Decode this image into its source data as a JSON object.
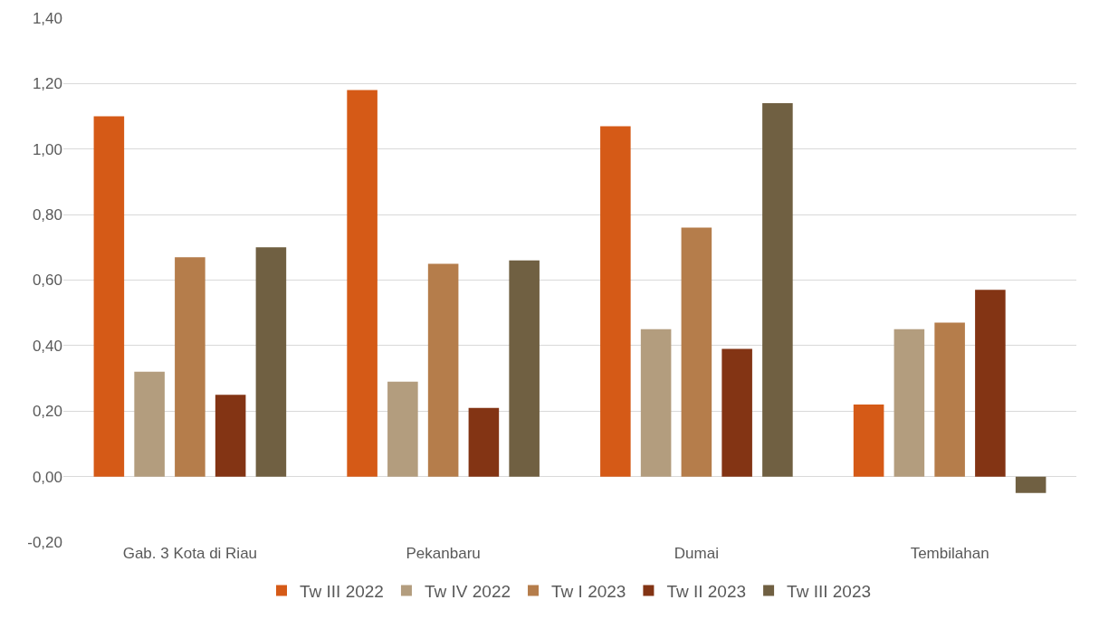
{
  "chart_data": {
    "type": "bar",
    "categories": [
      "Gab. 3 Kota di Riau",
      "Pekanbaru",
      "Dumai",
      "Tembilahan"
    ],
    "series": [
      {
        "name": "Tw III 2022",
        "color": "#d55a17",
        "values": [
          1.1,
          1.18,
          1.07,
          0.22
        ]
      },
      {
        "name": "Tw IV 2022",
        "color": "#b39d7e",
        "values": [
          0.32,
          0.29,
          0.45,
          0.45
        ]
      },
      {
        "name": "Tw I 2023",
        "color": "#b57d4b",
        "values": [
          0.67,
          0.65,
          0.76,
          0.47
        ]
      },
      {
        "name": "Tw II 2023",
        "color": "#833414",
        "values": [
          0.25,
          0.21,
          0.39,
          0.57
        ]
      },
      {
        "name": "Tw III 2023",
        "color": "#706042",
        "values": [
          0.7,
          0.66,
          1.14,
          -0.05
        ]
      }
    ],
    "ylim": [
      -0.2,
      1.4
    ],
    "yticks": [
      {
        "value": -0.2,
        "label": "-0,20"
      },
      {
        "value": 0,
        "label": "0,00"
      },
      {
        "value": 0.2,
        "label": "0,20"
      },
      {
        "value": 0.4,
        "label": "0,40"
      },
      {
        "value": 0.6,
        "label": "0,60"
      },
      {
        "value": 0.8,
        "label": "0,80"
      },
      {
        "value": 1.0,
        "label": "1,00"
      },
      {
        "value": 1.2,
        "label": "1,20"
      },
      {
        "value": 1.4,
        "label": "1,40"
      }
    ],
    "grid": "y",
    "legend": "bottom"
  }
}
